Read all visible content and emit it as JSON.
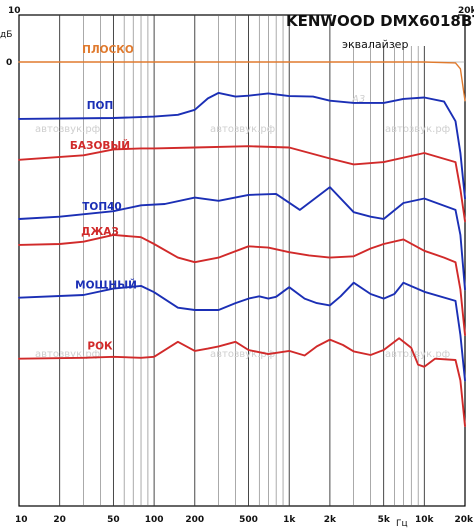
{
  "chart_data": {
    "type": "line",
    "title": "KENWOOD DMX6018BT",
    "subtitle": "эквалайзер",
    "ylabel": "дБ",
    "xlabel": "Гц",
    "x_scale": "log",
    "xlim": [
      10,
      20000
    ],
    "x_tick_labels": [
      "10",
      "20",
      "50",
      "100",
      "200",
      "500",
      "1k",
      "2k",
      "5k",
      "10k",
      "20k"
    ],
    "x_tick_values": [
      10,
      20,
      50,
      100,
      200,
      500,
      1000,
      2000,
      5000,
      10000,
      20000
    ],
    "y_tick_labels": [
      "0"
    ],
    "grid": true,
    "watermark": "автозвук.рф",
    "series": [
      {
        "name": "ПЛОСКО",
        "color": "#e07a2e",
        "x": [
          10,
          100,
          1000,
          10000,
          17000,
          18500,
          20000
        ],
        "y": [
          0,
          0,
          0,
          0,
          -0.2,
          -1.5,
          -8.5
        ]
      },
      {
        "name": "ПОП",
        "color": "#1b2fb5",
        "x": [
          10,
          50,
          100,
          150,
          200,
          250,
          300,
          400,
          500,
          700,
          1000,
          1500,
          2000,
          3000,
          5000,
          7000,
          10000,
          14000,
          17000,
          18500,
          20000
        ],
        "y": [
          -12.5,
          -12.3,
          -12,
          -11.6,
          -10.5,
          -8,
          -6.8,
          -7.6,
          -7.4,
          -6.9,
          -7.5,
          -7.6,
          -8.5,
          -9,
          -9,
          -8.1,
          -7.8,
          -8.7,
          -13,
          -20,
          -30
        ]
      },
      {
        "name": "БАЗОВЫЙ",
        "color": "#d12a2a",
        "x": [
          10,
          30,
          50,
          80,
          100,
          200,
          500,
          1000,
          2000,
          3000,
          5000,
          10000,
          17000,
          18500,
          20000
        ],
        "y": [
          -21.5,
          -20.5,
          -19.2,
          -19,
          -19,
          -18.8,
          -18.5,
          -18.8,
          -21.2,
          -22.5,
          -22,
          -20,
          -22,
          -28,
          -35
        ]
      },
      {
        "name": "ТОП40",
        "color": "#1b2fb5",
        "x": [
          10,
          20,
          50,
          80,
          120,
          200,
          300,
          500,
          800,
          1200,
          2000,
          3000,
          4000,
          5000,
          7000,
          10000,
          17000,
          18500,
          20000
        ],
        "y": [
          -34.5,
          -34,
          -32.8,
          -31.5,
          -31.2,
          -29.8,
          -30.5,
          -29.2,
          -29,
          -32.5,
          -27.5,
          -33,
          -34,
          -34.5,
          -31,
          -30,
          -32.5,
          -38,
          -50
        ]
      },
      {
        "name": "ДЖАЗ",
        "color": "#d12a2a",
        "x": [
          10,
          20,
          30,
          50,
          80,
          100,
          150,
          200,
          300,
          500,
          700,
          1000,
          1400,
          2000,
          3000,
          4000,
          5000,
          7000,
          10000,
          14000,
          17000,
          18500,
          20000
        ],
        "y": [
          -40.2,
          -40,
          -39.5,
          -38,
          -38.5,
          -40,
          -43,
          -44,
          -43,
          -40.5,
          -40.8,
          -41.8,
          -42.5,
          -43,
          -42.7,
          -41,
          -40,
          -39,
          -41.5,
          -43,
          -44,
          -50,
          -60
        ]
      },
      {
        "name": "МОЩНЫЙ",
        "color": "#1b2fb5",
        "x": [
          10,
          30,
          50,
          80,
          100,
          150,
          200,
          300,
          400,
          500,
          600,
          700,
          800,
          1000,
          1300,
          1600,
          2000,
          2400,
          3000,
          4000,
          5000,
          6000,
          7000,
          10000,
          17000,
          18500,
          20000
        ],
        "y": [
          -51.8,
          -51.2,
          -49.8,
          -49.2,
          -50.6,
          -54,
          -54.5,
          -54.5,
          -53,
          -52,
          -51.5,
          -52,
          -51.6,
          -49.5,
          -52,
          -53,
          -53.5,
          -51.5,
          -48.5,
          -51,
          -52,
          -51,
          -48.5,
          -50.5,
          -52.5,
          -60,
          -70
        ]
      },
      {
        "name": "РОК",
        "color": "#d12a2a",
        "x": [
          10,
          30,
          50,
          80,
          100,
          150,
          200,
          250,
          300,
          400,
          500,
          700,
          1000,
          1300,
          1600,
          2000,
          2500,
          3000,
          4000,
          5000,
          6500,
          8000,
          9000,
          10000,
          12000,
          17000,
          18500,
          20000
        ],
        "y": [
          -65.2,
          -65,
          -64.8,
          -65,
          -64.8,
          -61.5,
          -63.5,
          -63,
          -62.5,
          -61.5,
          -63.3,
          -64.2,
          -63.5,
          -64.5,
          -62.5,
          -61,
          -62.2,
          -63.6,
          -64.4,
          -63.3,
          -60.7,
          -62.8,
          -66.5,
          -67,
          -65.2,
          -65.5,
          -70,
          -80
        ]
      }
    ]
  }
}
